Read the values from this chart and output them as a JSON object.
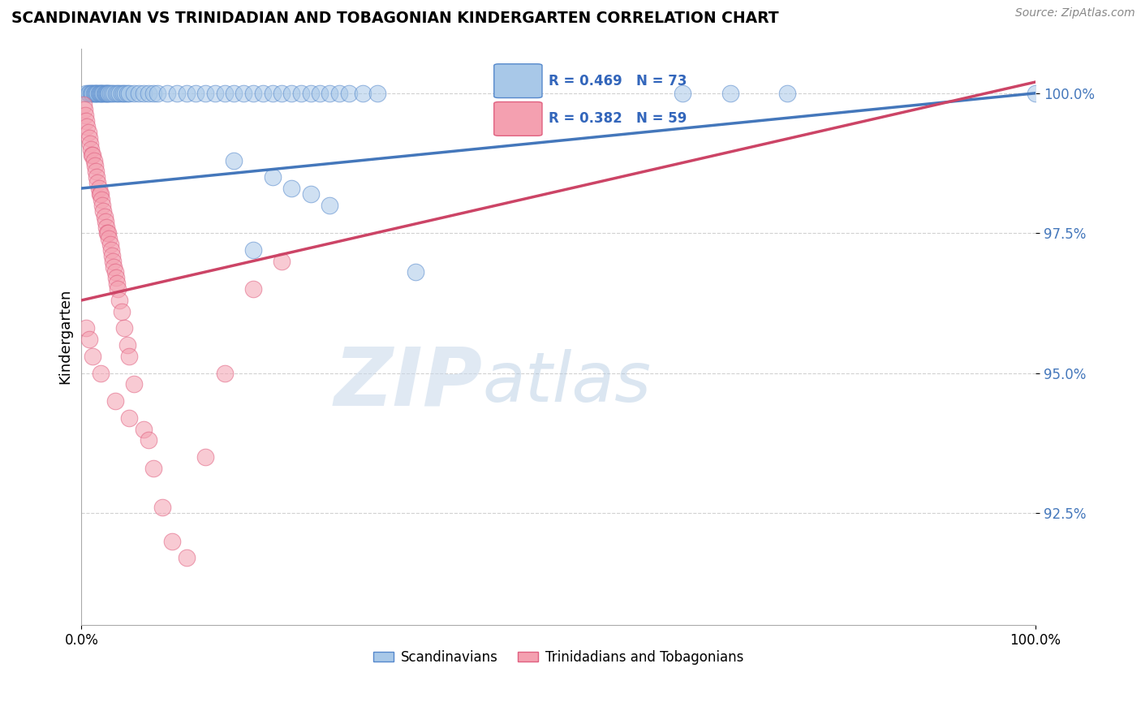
{
  "title": "SCANDINAVIAN VS TRINIDADIAN AND TOBAGONIAN KINDERGARTEN CORRELATION CHART",
  "source_text": "Source: ZipAtlas.com",
  "ylabel": "Kindergarten",
  "xlim": [
    0.0,
    1.0
  ],
  "ylim": [
    0.905,
    1.008
  ],
  "yticks": [
    0.925,
    0.95,
    0.975,
    1.0
  ],
  "ytick_labels": [
    "92.5%",
    "95.0%",
    "97.5%",
    "100.0%"
  ],
  "xtick_labels": [
    "0.0%",
    "100.0%"
  ],
  "legend_r_blue": "R = 0.469",
  "legend_n_blue": "N = 73",
  "legend_r_pink": "R = 0.382",
  "legend_n_pink": "N = 59",
  "legend_label_blue": "Scandinavians",
  "legend_label_pink": "Trinidadians and Tobagonians",
  "blue_color": "#a8c8e8",
  "pink_color": "#f4a0b0",
  "blue_edge_color": "#5588cc",
  "pink_edge_color": "#e06080",
  "blue_line_color": "#4477bb",
  "pink_line_color": "#cc4466",
  "watermark_zip": "ZIP",
  "watermark_atlas": "atlas",
  "background_color": "#ffffff",
  "grid_color": "#cccccc",
  "blue_scatter_x": [
    0.005,
    0.007,
    0.008,
    0.01,
    0.011,
    0.012,
    0.013,
    0.014,
    0.015,
    0.016,
    0.017,
    0.018,
    0.019,
    0.02,
    0.021,
    0.022,
    0.023,
    0.024,
    0.025,
    0.026,
    0.027,
    0.028,
    0.029,
    0.03,
    0.032,
    0.034,
    0.036,
    0.038,
    0.04,
    0.042,
    0.044,
    0.046,
    0.048,
    0.05,
    0.055,
    0.06,
    0.065,
    0.07,
    0.075,
    0.08,
    0.09,
    0.1,
    0.11,
    0.12,
    0.13,
    0.14,
    0.15,
    0.16,
    0.17,
    0.18,
    0.19,
    0.2,
    0.21,
    0.22,
    0.23,
    0.24,
    0.25,
    0.26,
    0.27,
    0.28,
    0.295,
    0.31,
    0.16,
    0.2,
    0.22,
    0.24,
    0.26,
    0.63,
    0.68,
    0.74,
    1.0,
    0.18,
    0.35
  ],
  "blue_scatter_y": [
    1.0,
    1.0,
    1.0,
    1.0,
    1.0,
    1.0,
    1.0,
    1.0,
    1.0,
    1.0,
    1.0,
    1.0,
    1.0,
    1.0,
    1.0,
    1.0,
    1.0,
    1.0,
    1.0,
    1.0,
    1.0,
    1.0,
    1.0,
    1.0,
    1.0,
    1.0,
    1.0,
    1.0,
    1.0,
    1.0,
    1.0,
    1.0,
    1.0,
    1.0,
    1.0,
    1.0,
    1.0,
    1.0,
    1.0,
    1.0,
    1.0,
    1.0,
    1.0,
    1.0,
    1.0,
    1.0,
    1.0,
    1.0,
    1.0,
    1.0,
    1.0,
    1.0,
    1.0,
    1.0,
    1.0,
    1.0,
    1.0,
    1.0,
    1.0,
    1.0,
    1.0,
    1.0,
    0.988,
    0.985,
    0.983,
    0.982,
    0.98,
    1.0,
    1.0,
    1.0,
    1.0,
    0.972,
    0.968
  ],
  "pink_scatter_x": [
    0.002,
    0.003,
    0.004,
    0.005,
    0.006,
    0.007,
    0.008,
    0.009,
    0.01,
    0.011,
    0.012,
    0.013,
    0.014,
    0.015,
    0.016,
    0.017,
    0.018,
    0.019,
    0.02,
    0.021,
    0.022,
    0.023,
    0.024,
    0.025,
    0.026,
    0.027,
    0.028,
    0.029,
    0.03,
    0.031,
    0.032,
    0.033,
    0.034,
    0.035,
    0.036,
    0.037,
    0.038,
    0.04,
    0.042,
    0.045,
    0.048,
    0.05,
    0.055,
    0.065,
    0.075,
    0.085,
    0.095,
    0.11,
    0.13,
    0.15,
    0.18,
    0.21,
    0.005,
    0.008,
    0.012,
    0.02,
    0.035,
    0.05,
    0.07
  ],
  "pink_scatter_y": [
    0.998,
    0.997,
    0.996,
    0.995,
    0.994,
    0.993,
    0.992,
    0.991,
    0.99,
    0.989,
    0.989,
    0.988,
    0.987,
    0.986,
    0.985,
    0.984,
    0.983,
    0.982,
    0.982,
    0.981,
    0.98,
    0.979,
    0.978,
    0.977,
    0.976,
    0.975,
    0.975,
    0.974,
    0.973,
    0.972,
    0.971,
    0.97,
    0.969,
    0.968,
    0.967,
    0.966,
    0.965,
    0.963,
    0.961,
    0.958,
    0.955,
    0.953,
    0.948,
    0.94,
    0.933,
    0.926,
    0.92,
    0.917,
    0.935,
    0.95,
    0.965,
    0.97,
    0.958,
    0.956,
    0.953,
    0.95,
    0.945,
    0.942,
    0.938
  ]
}
